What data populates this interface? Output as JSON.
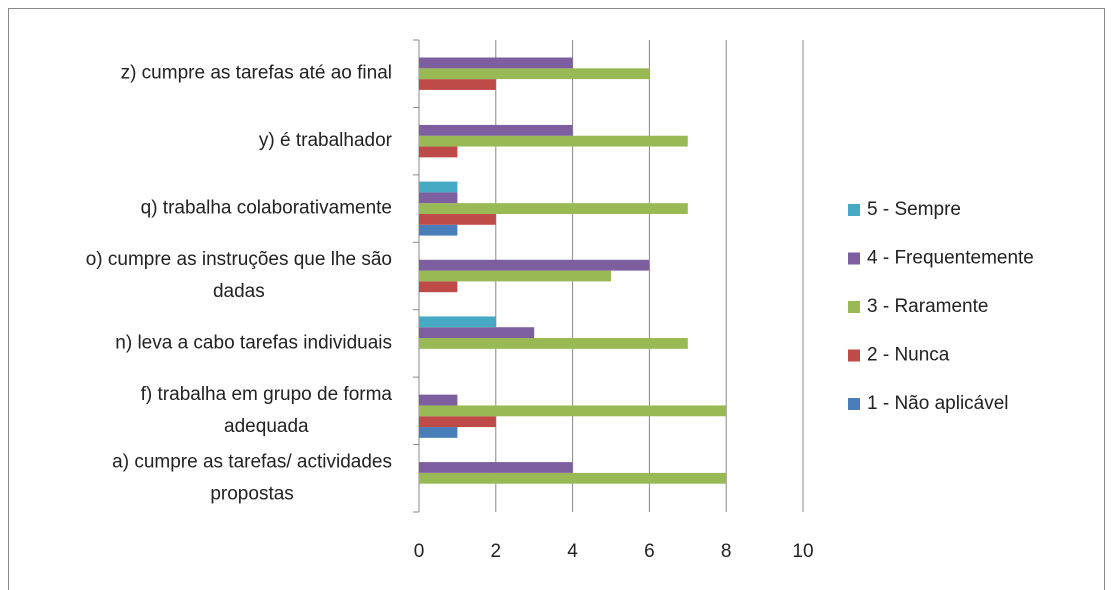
{
  "chart_data": {
    "type": "hbar",
    "categories": [
      "z) cumpre as tarefas até ao final",
      "y) é trabalhador",
      "q) trabalha colaborativamente",
      "o) cumpre as instruções que lhe são dadas",
      "n) leva a cabo tarefas individuais",
      "f) trabalha em grupo de forma adequada",
      "a) cumpre as tarefas/ actividades propostas"
    ],
    "series": [
      {
        "name": "1 - Não aplicável",
        "color": "#4a7ebb",
        "values": [
          0,
          0,
          1,
          0,
          0,
          1,
          0
        ]
      },
      {
        "name": "2 - Nunca",
        "color": "#be4b48",
        "values": [
          2,
          1,
          2,
          1,
          0,
          2,
          0
        ]
      },
      {
        "name": "3 - Raramente",
        "color": "#98b954",
        "values": [
          6,
          7,
          7,
          5,
          7,
          8,
          8
        ]
      },
      {
        "name": "4 - Frequentemente",
        "color": "#7d5fa0",
        "values": [
          4,
          4,
          1,
          6,
          3,
          1,
          4
        ]
      },
      {
        "name": "5 - Sempre",
        "color": "#46aac5",
        "values": [
          0,
          0,
          1,
          0,
          2,
          0,
          0
        ]
      }
    ],
    "xlim": [
      0,
      10
    ],
    "xticks": [
      0,
      2,
      4,
      6,
      8,
      10
    ],
    "grid": true,
    "legend": "right"
  }
}
